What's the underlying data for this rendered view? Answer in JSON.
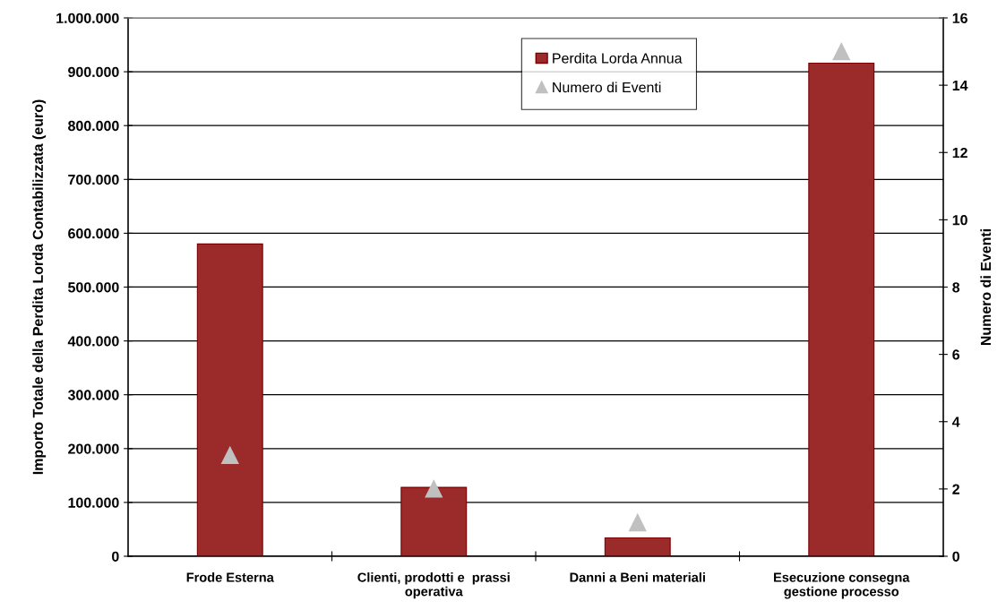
{
  "chart_data": {
    "type": "bar",
    "categories": [
      "Frode Esterna",
      "Clienti, prodotti e  prassi\noperativa",
      "Danni a Beni materiali",
      "Esecuzione consegna\ngestione processo"
    ],
    "series": [
      {
        "name": "Perdita Lorda Annua",
        "color": "#9b2a2a",
        "values": [
          580000,
          128000,
          34000,
          916000
        ]
      },
      {
        "name": "Numero di Eventi",
        "type": "scatter",
        "axis": "y2",
        "color": "#c0c0c0",
        "marker": "triangle",
        "values": [
          3,
          2,
          1,
          15
        ]
      }
    ],
    "ylabel": "Importo Totale della Perdita Lorda Contabilizzata (euro)",
    "y2label": "Numero di Eventi",
    "ylim": [
      0,
      1000000
    ],
    "yticks": [
      {
        "value": 0,
        "label": "0"
      },
      {
        "value": 100000,
        "label": "100.000"
      },
      {
        "value": 200000,
        "label": "200.000"
      },
      {
        "value": 300000,
        "label": "300.000"
      },
      {
        "value": 400000,
        "label": "400.000"
      },
      {
        "value": 500000,
        "label": "500.000"
      },
      {
        "value": 600000,
        "label": "600.000"
      },
      {
        "value": 700000,
        "label": "700.000"
      },
      {
        "value": 800000,
        "label": "800.000"
      },
      {
        "value": 900000,
        "label": "900.000"
      },
      {
        "value": 1000000,
        "label": "1.000.000"
      }
    ],
    "y2lim": [
      0,
      16
    ],
    "y2ticks": [
      0,
      2,
      4,
      6,
      8,
      10,
      12,
      14,
      16
    ],
    "grid": "y",
    "legend": "top"
  }
}
